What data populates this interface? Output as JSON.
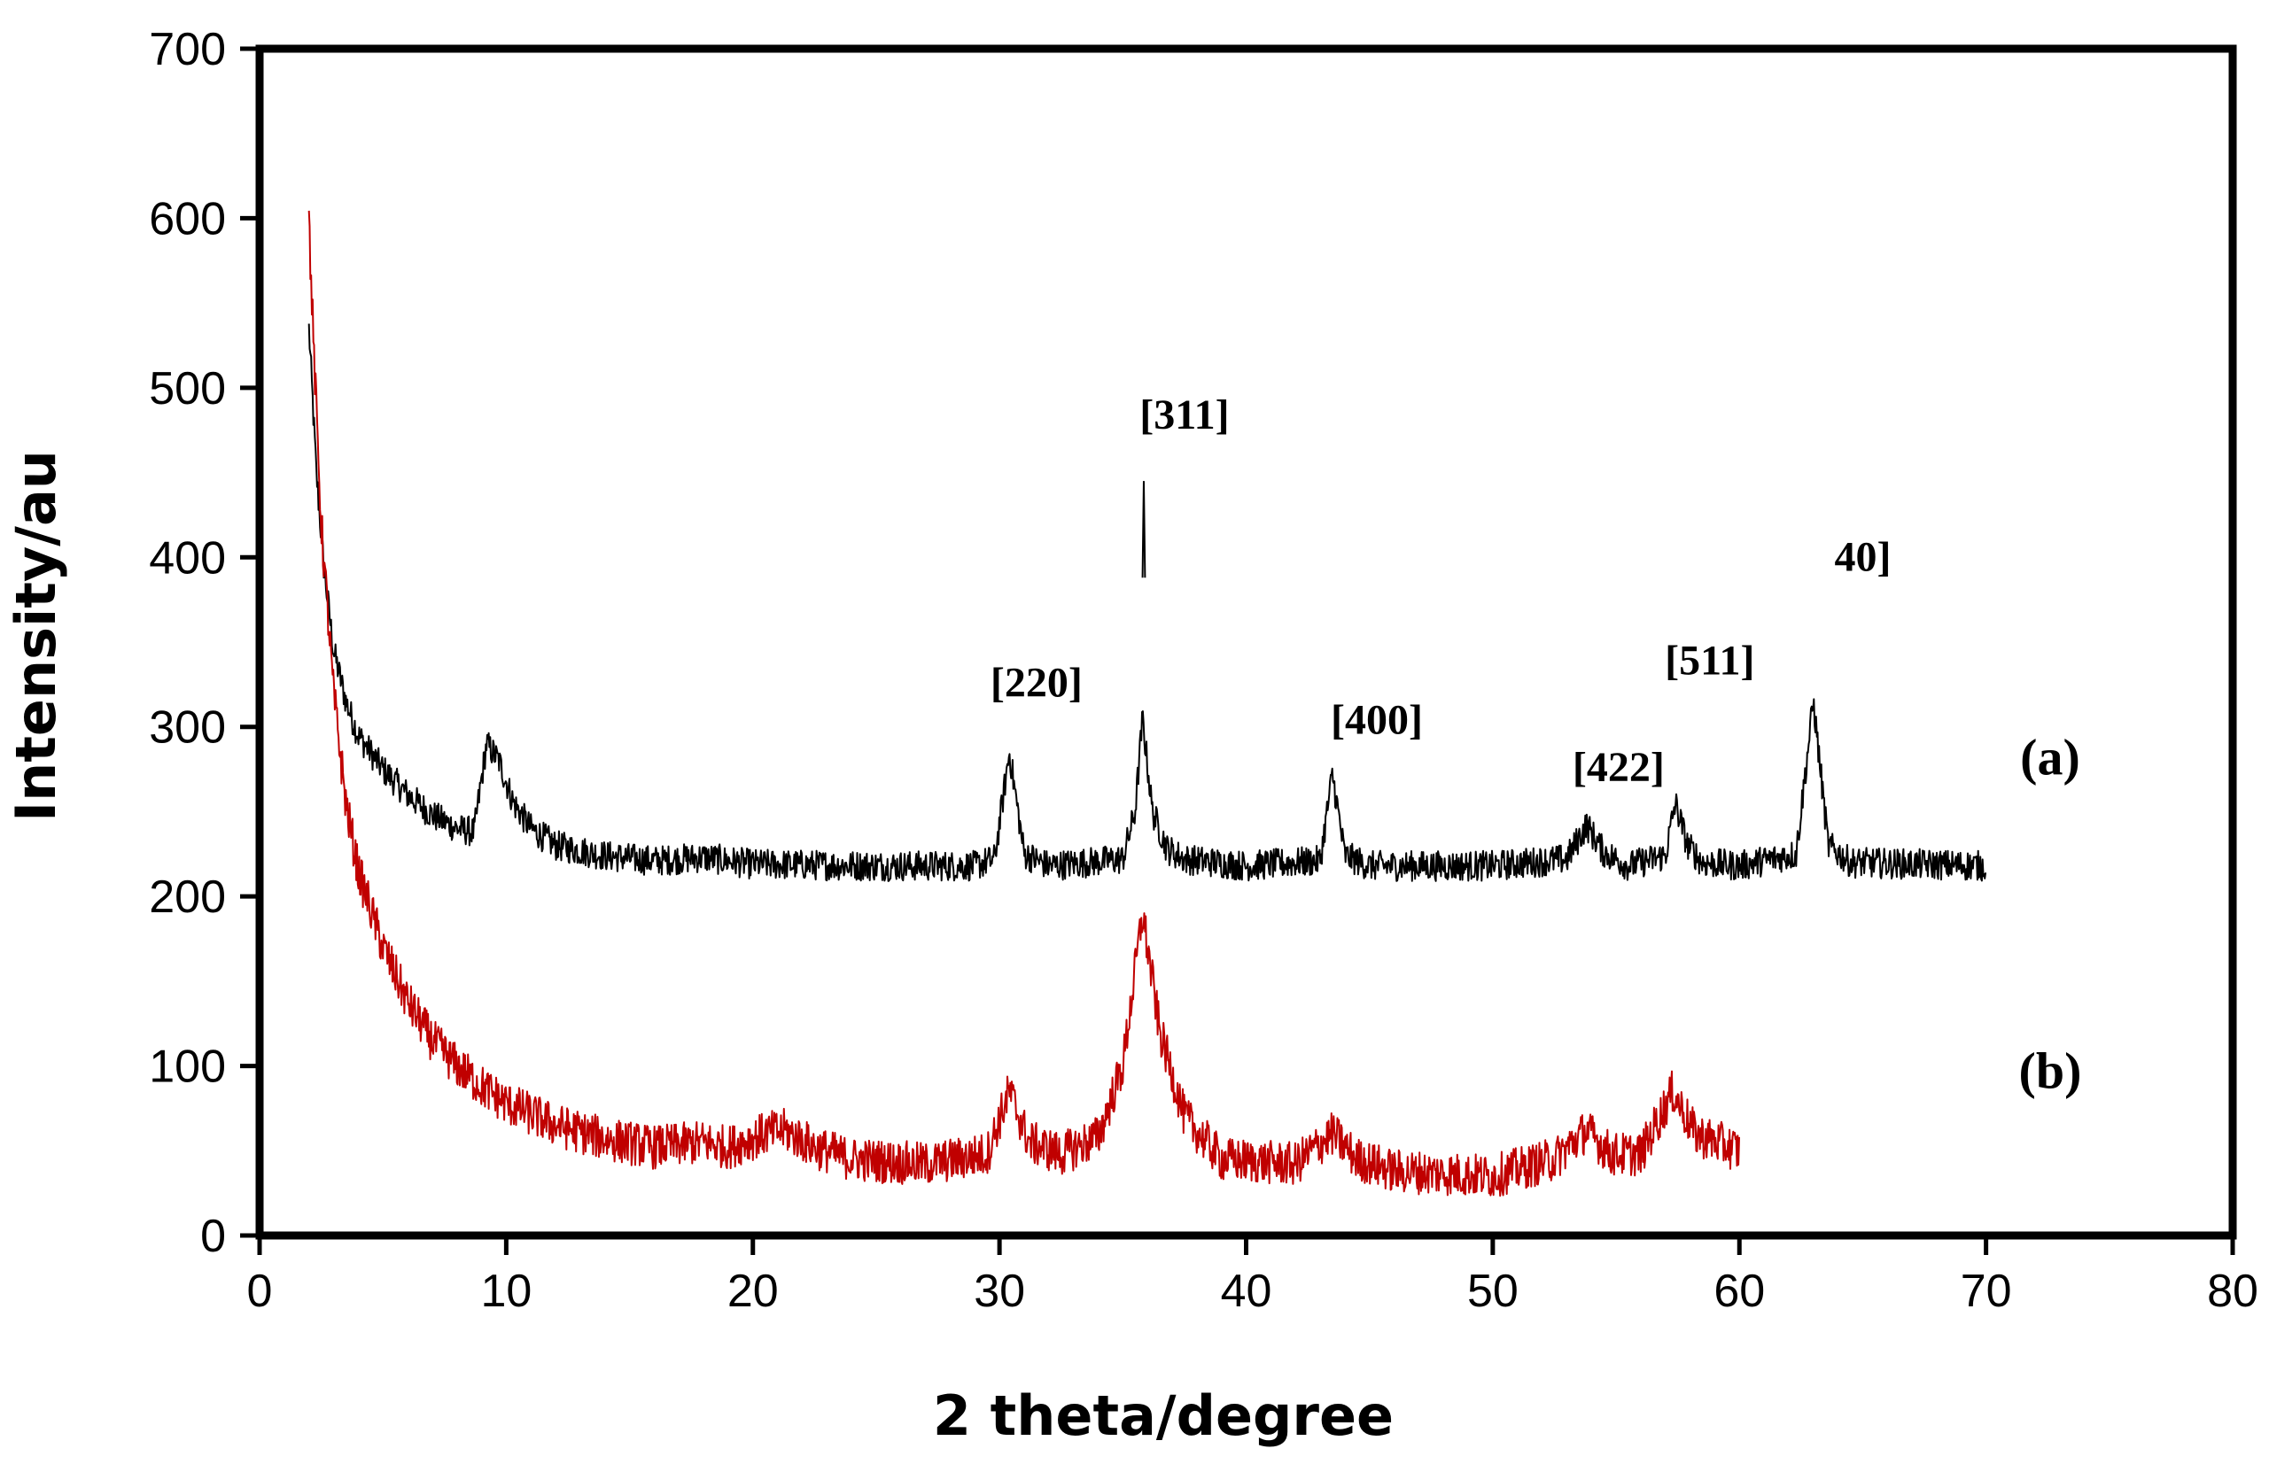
{
  "chart_data": {
    "type": "line",
    "xlabel": "2 theta/degree",
    "ylabel": "Intensity/au",
    "xlim": [
      0,
      80
    ],
    "ylim": [
      0,
      700
    ],
    "x_ticks": [
      0,
      10,
      20,
      30,
      40,
      50,
      60,
      70,
      80
    ],
    "y_ticks": [
      0,
      100,
      200,
      300,
      400,
      500,
      600,
      700
    ],
    "grid": false,
    "legend": "none",
    "series": [
      {
        "name": "(a)",
        "color": "#000000",
        "baseline": 218,
        "noise": 9,
        "x_range": [
          2,
          70
        ],
        "points": [
          [
            2.0,
            535
          ],
          [
            2.3,
            450
          ],
          [
            2.6,
            395
          ],
          [
            3.0,
            345
          ],
          [
            3.5,
            315
          ],
          [
            4.0,
            295
          ],
          [
            5.0,
            275
          ],
          [
            6.0,
            260
          ],
          [
            7.0,
            248
          ],
          [
            8.0,
            240
          ],
          [
            8.7,
            238
          ],
          [
            9.2,
            290
          ],
          [
            9.7,
            280
          ],
          [
            10.3,
            255
          ],
          [
            11.0,
            240
          ],
          [
            12.0,
            230
          ],
          [
            14.0,
            224
          ],
          [
            16.0,
            221
          ],
          [
            18.0,
            223
          ],
          [
            20.0,
            219
          ],
          [
            25.0,
            218
          ],
          [
            29.0,
            218
          ],
          [
            29.8,
            222
          ],
          [
            30.4,
            285
          ],
          [
            31.0,
            225
          ],
          [
            32.0,
            218
          ],
          [
            35.0,
            222
          ],
          [
            35.5,
            250
          ],
          [
            35.8,
            305
          ],
          [
            36.2,
            250
          ],
          [
            36.8,
            228
          ],
          [
            37.5,
            222
          ],
          [
            40.0,
            218
          ],
          [
            43.0,
            221
          ],
          [
            43.5,
            272
          ],
          [
            44.0,
            224
          ],
          [
            45.0,
            218
          ],
          [
            50.0,
            218
          ],
          [
            53.0,
            222
          ],
          [
            53.8,
            242
          ],
          [
            54.5,
            226
          ],
          [
            55.5,
            218
          ],
          [
            57.0,
            224
          ],
          [
            57.4,
            255
          ],
          [
            57.9,
            230
          ],
          [
            58.5,
            220
          ],
          [
            60.0,
            218
          ],
          [
            62.3,
            225
          ],
          [
            63.0,
            315
          ],
          [
            63.6,
            230
          ],
          [
            64.5,
            220
          ],
          [
            70.0,
            218
          ]
        ],
        "spikes": [
          [
            35.85,
            445,
            388
          ]
        ]
      },
      {
        "name": "(b)",
        "color": "#c00000",
        "noise": 13,
        "x_range": [
          2,
          60
        ],
        "points": [
          [
            2.0,
            600
          ],
          [
            2.2,
            520
          ],
          [
            2.5,
            420
          ],
          [
            3.0,
            320
          ],
          [
            3.5,
            255
          ],
          [
            4.0,
            215
          ],
          [
            5.0,
            170
          ],
          [
            6.0,
            138
          ],
          [
            7.0,
            115
          ],
          [
            8.0,
            100
          ],
          [
            9.0,
            88
          ],
          [
            10.0,
            78
          ],
          [
            12.0,
            65
          ],
          [
            14.0,
            57
          ],
          [
            16.0,
            52
          ],
          [
            18.0,
            55
          ],
          [
            19.0,
            52
          ],
          [
            20.5,
            60
          ],
          [
            21.3,
            62
          ],
          [
            22.5,
            52
          ],
          [
            24.0,
            45
          ],
          [
            27.0,
            42
          ],
          [
            29.5,
            48
          ],
          [
            30.4,
            85
          ],
          [
            31.2,
            55
          ],
          [
            32.5,
            48
          ],
          [
            34.0,
            58
          ],
          [
            35.0,
            100
          ],
          [
            35.8,
            190
          ],
          [
            36.5,
            120
          ],
          [
            37.5,
            70
          ],
          [
            39.0,
            45
          ],
          [
            42.0,
            42
          ],
          [
            43.5,
            60
          ],
          [
            44.5,
            45
          ],
          [
            46.0,
            38
          ],
          [
            50.0,
            35
          ],
          [
            52.5,
            45
          ],
          [
            53.8,
            62
          ],
          [
            54.8,
            48
          ],
          [
            56.0,
            48
          ],
          [
            57.3,
            85
          ],
          [
            58.2,
            60
          ],
          [
            60.0,
            50
          ]
        ],
        "spikes": []
      }
    ],
    "peak_annotations": [
      {
        "text": "[220]",
        "x": 31.5,
        "y": 318
      },
      {
        "text": "[311]",
        "x": 37.5,
        "y": 476
      },
      {
        "text": "[400]",
        "x": 45.3,
        "y": 296
      },
      {
        "text": "[422]",
        "x": 55.1,
        "y": 268
      },
      {
        "text": "[511]",
        "x": 58.8,
        "y": 331
      },
      {
        "text": "40]",
        "x": 65.0,
        "y": 392
      }
    ],
    "series_labels": [
      {
        "text": "(a)",
        "x": 72.6,
        "y": 272
      },
      {
        "text": "(b)",
        "x": 72.6,
        "y": 87
      }
    ]
  }
}
